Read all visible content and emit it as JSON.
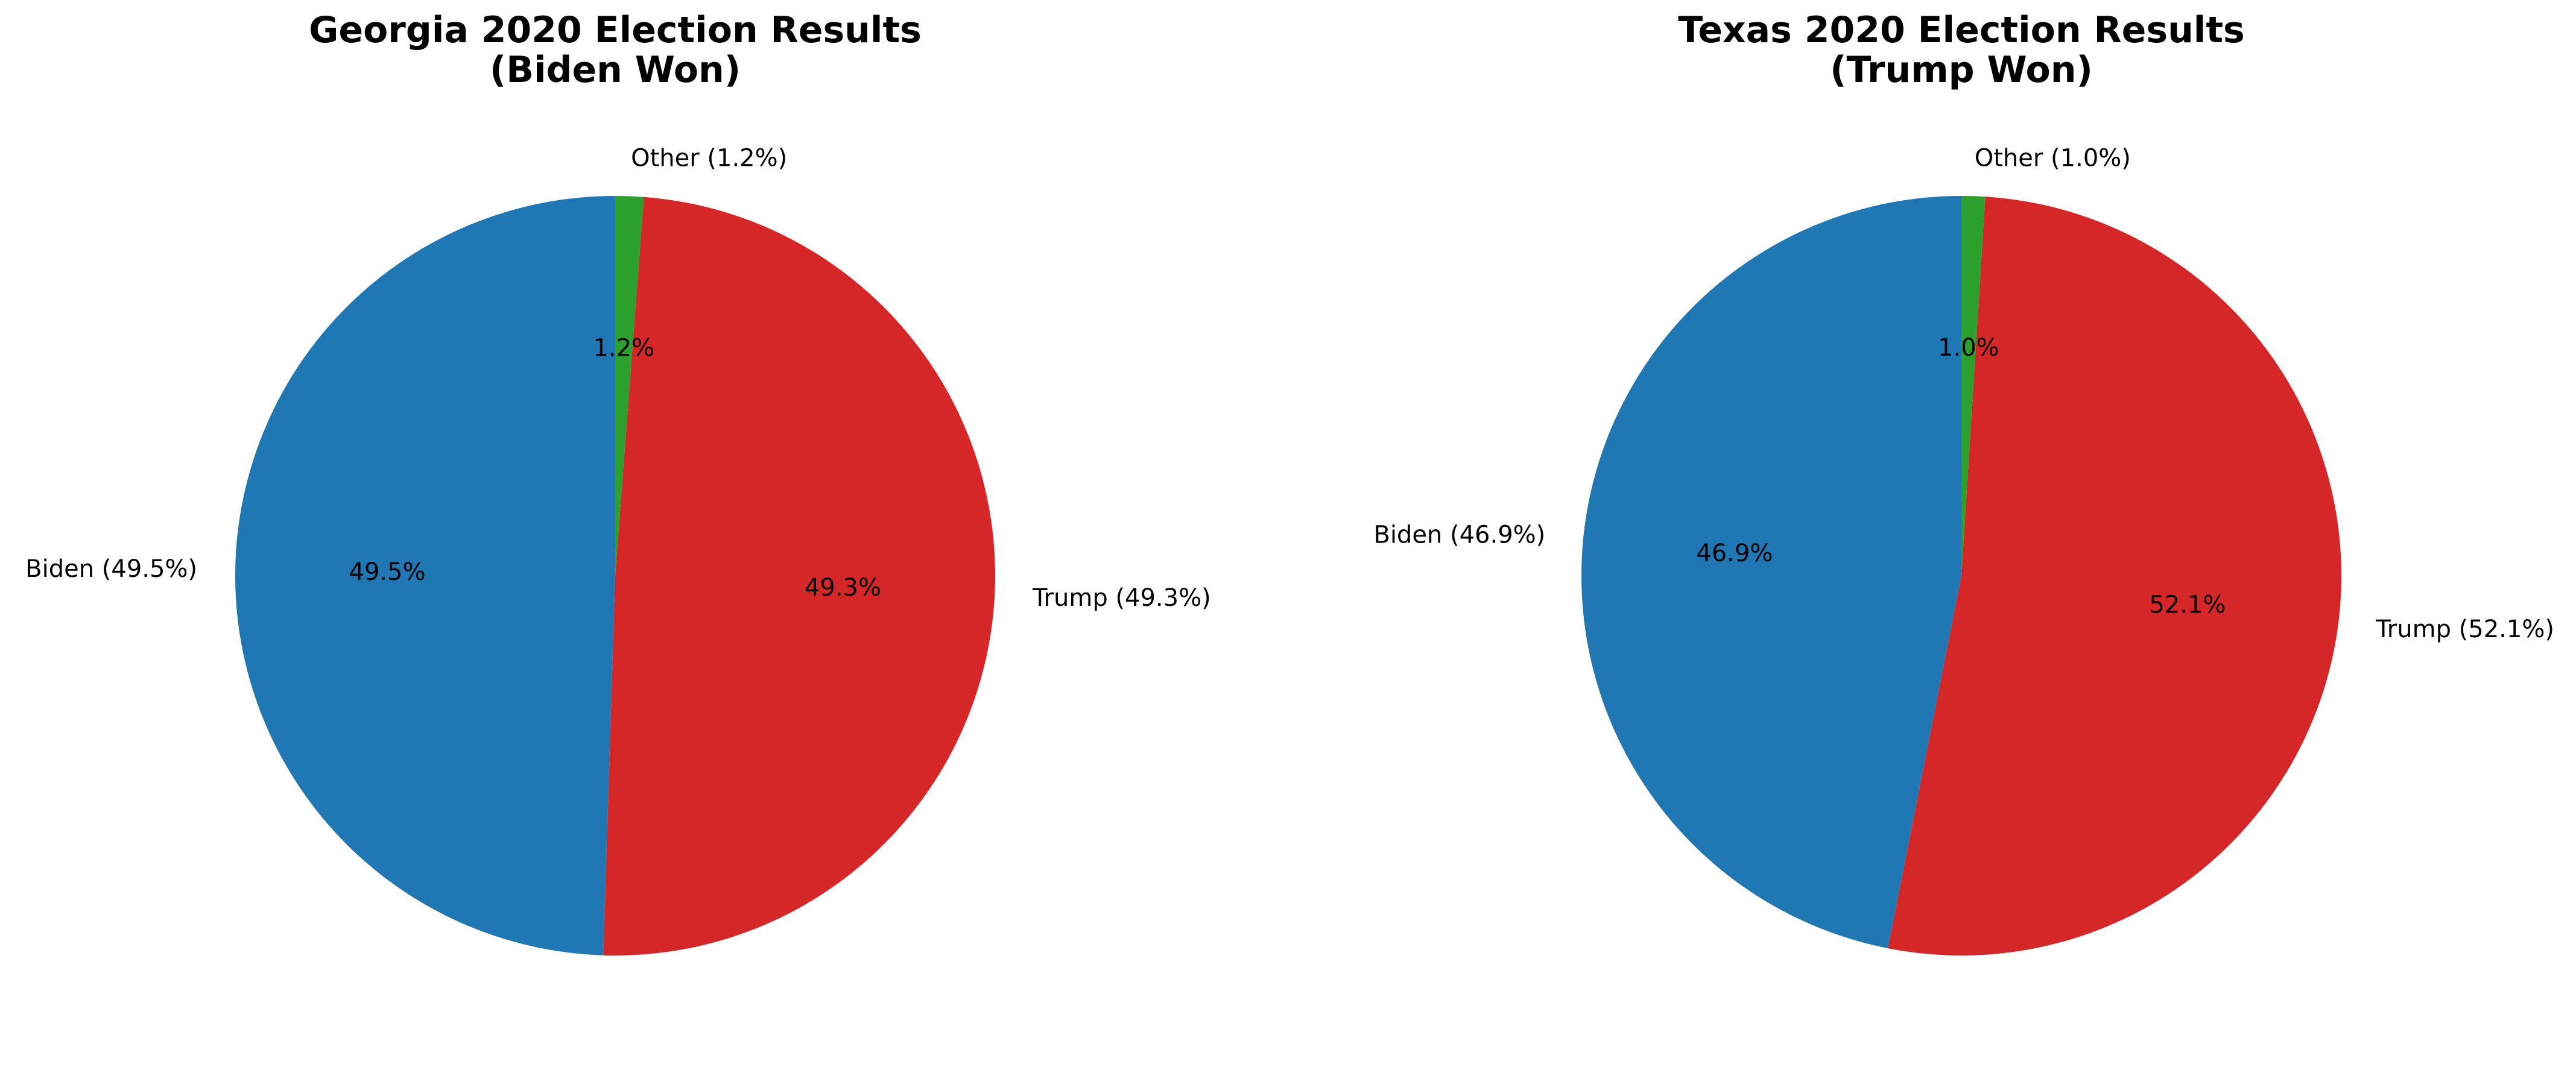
{
  "chart_data": [
    {
      "type": "pie",
      "title": [
        "Georgia 2020 Election Results",
        "(Biden Won)"
      ],
      "start_angle_deg": 90,
      "direction": "counterclockwise",
      "slices": [
        {
          "key": "biden",
          "label": "Biden (49.5%)",
          "value": 49.5,
          "pct_label": "49.5%",
          "color": "#1f77b4"
        },
        {
          "key": "trump",
          "label": "Trump (49.3%)",
          "value": 49.3,
          "pct_label": "49.3%",
          "color": "#d62728"
        },
        {
          "key": "other",
          "label": "Other (1.2%)",
          "value": 1.2,
          "pct_label": "1.2%",
          "color": "#2ca02c"
        }
      ]
    },
    {
      "type": "pie",
      "title": [
        "Texas 2020 Election Results",
        "(Trump Won)"
      ],
      "start_angle_deg": 90,
      "direction": "counterclockwise",
      "slices": [
        {
          "key": "biden",
          "label": "Biden (46.9%)",
          "value": 46.9,
          "pct_label": "46.9%",
          "color": "#1f77b4"
        },
        {
          "key": "trump",
          "label": "Trump (52.1%)",
          "value": 52.1,
          "pct_label": "52.1%",
          "color": "#d62728"
        },
        {
          "key": "other",
          "label": "Other (1.0%)",
          "value": 1.0,
          "pct_label": "1.0%",
          "color": "#2ca02c"
        }
      ]
    }
  ]
}
